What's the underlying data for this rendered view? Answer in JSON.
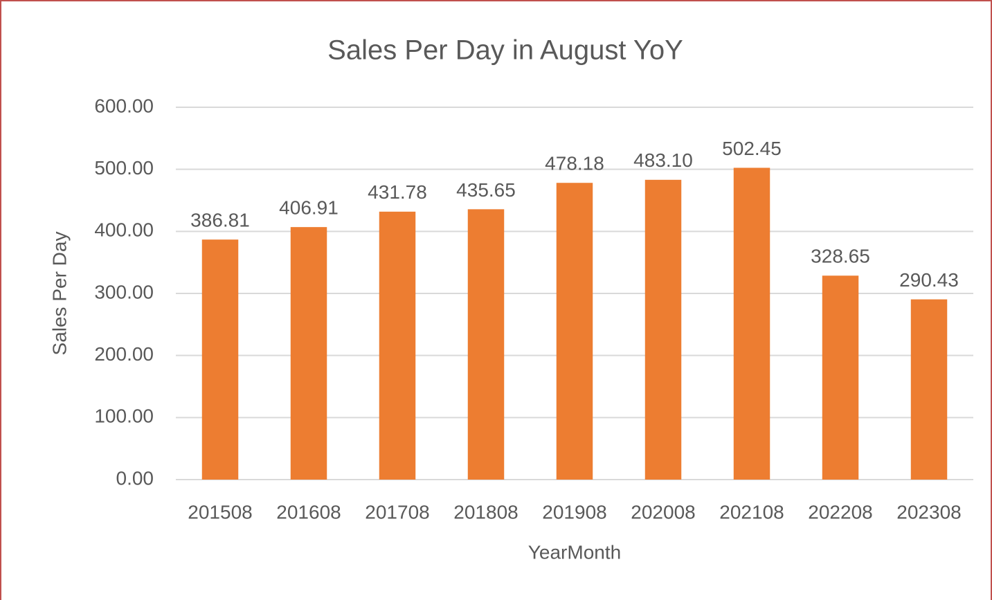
{
  "chart_data": {
    "type": "bar",
    "title": "Sales Per Day in August YoY",
    "x_label": "YearMonth",
    "y_label": "Sales Per Day",
    "categories": [
      "201508",
      "201608",
      "201708",
      "201808",
      "201908",
      "202008",
      "202108",
      "202208",
      "202308"
    ],
    "values": [
      386.81,
      406.91,
      431.78,
      435.65,
      478.18,
      483.1,
      502.45,
      328.65,
      290.43
    ],
    "value_labels": [
      "386.81",
      "406.91",
      "431.78",
      "435.65",
      "478.18",
      "483.10",
      "502.45",
      "328.65",
      "290.43"
    ],
    "color": "#ed7d31",
    "ylim": [
      0,
      600
    ],
    "yticks": [
      {
        "value": 0,
        "label": "0.00"
      },
      {
        "value": 100,
        "label": "100.00"
      },
      {
        "value": 200,
        "label": "200.00"
      },
      {
        "value": 300,
        "label": "300.00"
      },
      {
        "value": 400,
        "label": "400.00"
      },
      {
        "value": 500,
        "label": "500.00"
      },
      {
        "value": 600,
        "label": "600.00"
      }
    ],
    "grid": true
  }
}
